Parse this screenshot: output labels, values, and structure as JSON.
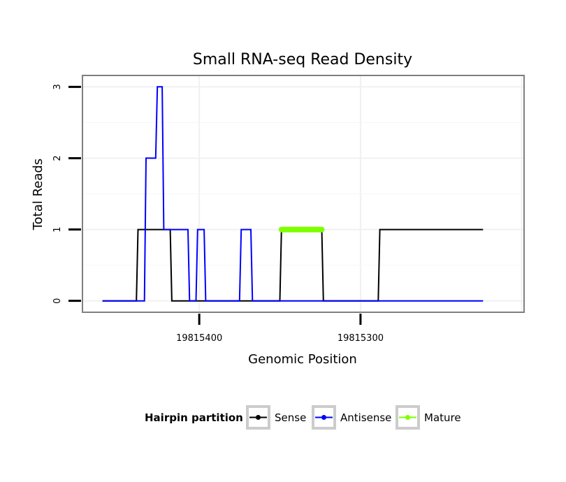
{
  "chart_data": {
    "type": "line",
    "title": "Small RNA-seq Read Density",
    "xlabel": "Genomic Position",
    "ylabel": "Total Reads",
    "x_reversed": true,
    "xlim": [
      19815472,
      19815199
    ],
    "ylim": [
      -0.15,
      3.15
    ],
    "x_ticks": [
      19815400,
      19815300
    ],
    "x_tick_labels": [
      "19815400",
      "19815300"
    ],
    "y_ticks": [
      0,
      1,
      2,
      3
    ],
    "y_tick_labels": [
      "0",
      "1",
      "2",
      "3"
    ],
    "grid": true,
    "legend": {
      "title": "Hairpin partition",
      "position": "bottom",
      "entries": [
        "Sense",
        "Antisense",
        "Mature"
      ]
    },
    "series": [
      {
        "name": "Sense",
        "color": "#000000",
        "x": [
          19815460,
          19815439,
          19815438,
          19815418,
          19815417,
          19815350,
          19815349,
          19815324,
          19815323,
          19815289,
          19815288,
          19815224
        ],
        "y": [
          0,
          0,
          1,
          1,
          0,
          0,
          1,
          1,
          0,
          0,
          1,
          1
        ]
      },
      {
        "name": "Antisense",
        "color": "#0000ff",
        "x": [
          19815460,
          19815434,
          19815433,
          19815427,
          19815426,
          19815423,
          19815422,
          19815407,
          19815406,
          19815402,
          19815401,
          19815397,
          19815396,
          19815375,
          19815374,
          19815368,
          19815367,
          19815347,
          19815346,
          19815224
        ],
        "y": [
          0,
          0,
          2,
          2,
          3,
          3,
          1,
          1,
          0,
          0,
          1,
          1,
          0,
          0,
          1,
          1,
          0,
          0,
          0,
          0
        ]
      },
      {
        "name": "Mature",
        "color": "#7fff00",
        "x": [
          19815349,
          19815324
        ],
        "y": [
          1,
          1
        ]
      }
    ]
  }
}
